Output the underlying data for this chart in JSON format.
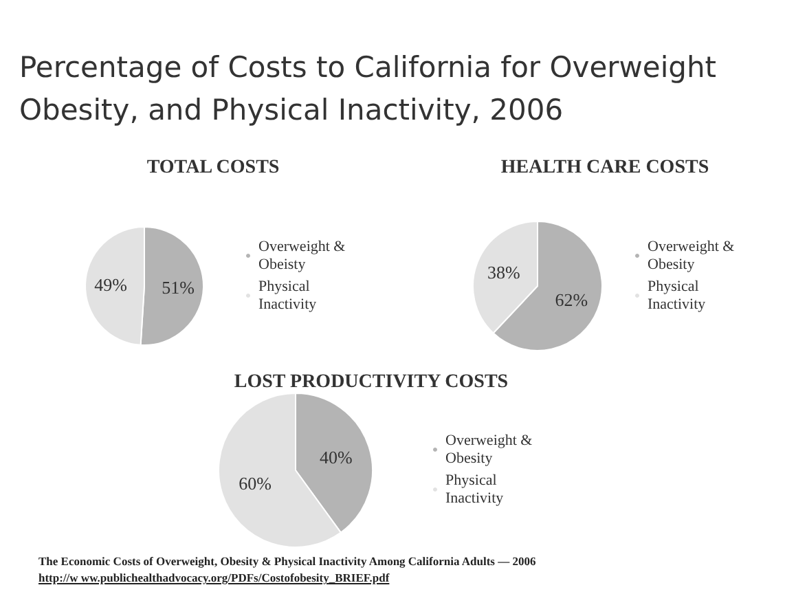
{
  "chart_data": [
    {
      "type": "pie",
      "title": "Percentage of Costs to California for Overweight Obesity, and Physical Inactivity, 2006",
      "subtitle": "TOTAL COSTS",
      "categories": [
        "Overweight & Obeisty",
        "Physical Inactivity"
      ],
      "values": [
        51,
        49
      ],
      "value_labels": [
        "51%",
        "49%"
      ],
      "colors": [
        "#b4b4b4",
        "#e2e2e2"
      ],
      "legend": "right"
    },
    {
      "type": "pie",
      "subtitle": "HEALTH CARE COSTS",
      "categories": [
        "Overweight & Obesity",
        "Physical Inactivity"
      ],
      "values": [
        62,
        38
      ],
      "value_labels": [
        "62%",
        "38%"
      ],
      "colors": [
        "#b4b4b4",
        "#e2e2e2"
      ],
      "legend": "right"
    },
    {
      "type": "pie",
      "subtitle": "LOST PRODUCTIVITY COSTS",
      "categories": [
        "Overweight & Obesity",
        "Physical Inactivity"
      ],
      "values": [
        40,
        60
      ],
      "value_labels": [
        "40%",
        "60%"
      ],
      "colors": [
        "#b4b4b4",
        "#e2e2e2"
      ],
      "legend": "right",
      "annotations": [
        "The Economic Costs of Overweight, Obesity & Physical Inactivity Among California Adults — 2006",
        "http://w ww.publichealthadvocacy.org/PDFs/Costofobesity_BRIEF.pdf"
      ]
    }
  ]
}
